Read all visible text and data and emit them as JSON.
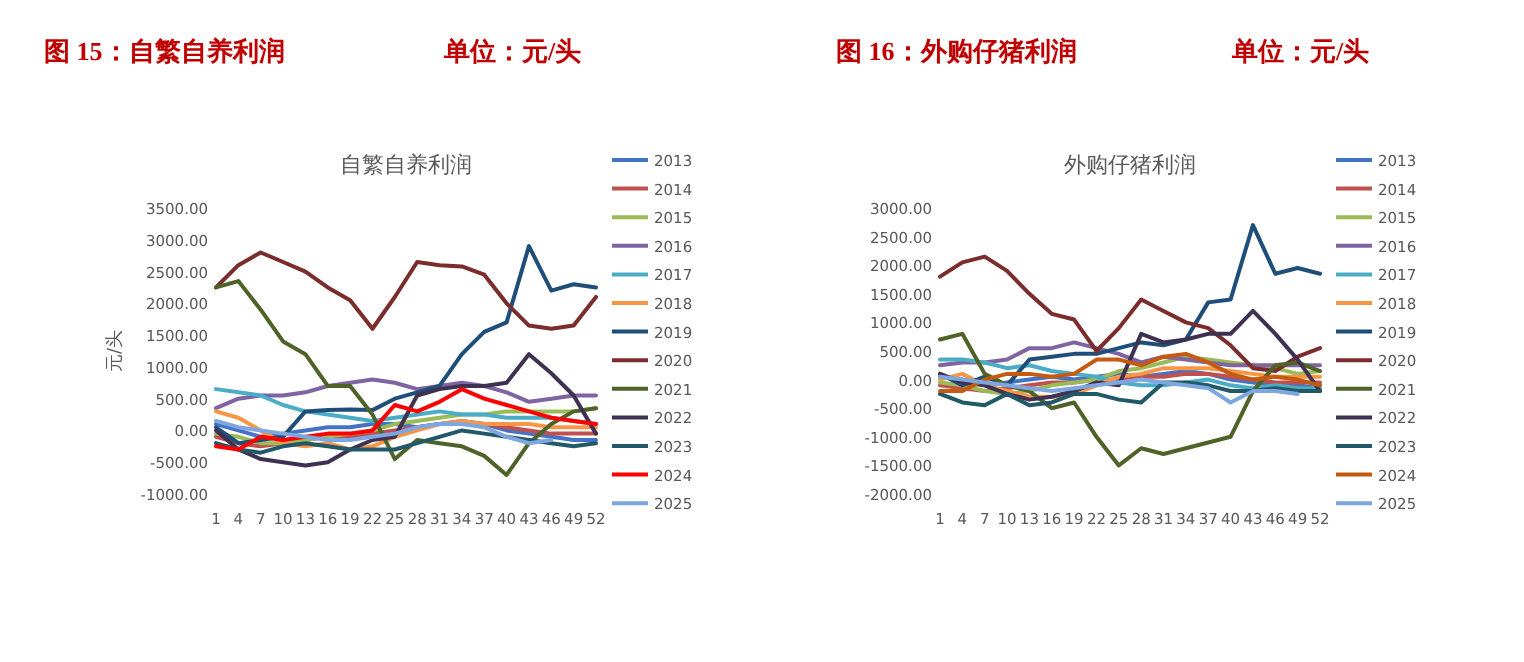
{
  "chart_data": [
    {
      "type": "line",
      "title": "自繁自养利润",
      "ylabel": "元/头",
      "annotations": [
        "图 15：自繁自养利润",
        "单位：元/头"
      ],
      "x": [
        1,
        4,
        7,
        10,
        13,
        16,
        19,
        22,
        25,
        28,
        31,
        34,
        37,
        40,
        43,
        46,
        49,
        52
      ],
      "xlim": [
        1,
        52
      ],
      "xticks": [
        1,
        4,
        7,
        10,
        13,
        16,
        19,
        22,
        25,
        28,
        31,
        34,
        37,
        40,
        43,
        46,
        49,
        52
      ],
      "ylim": [
        -1000,
        3500
      ],
      "yticks": [
        {
          "value": -1000,
          "label": "-1000.00"
        },
        {
          "value": -500,
          "label": "-500.00"
        },
        {
          "value": 0,
          "label": "0.00"
        },
        {
          "value": 500,
          "label": "500.00"
        },
        {
          "value": 1000,
          "label": "1000.00"
        },
        {
          "value": 1500,
          "label": "1500.00"
        },
        {
          "value": 2000,
          "label": "2000.00"
        },
        {
          "value": 2500,
          "label": "2500.00"
        },
        {
          "value": 3000,
          "label": "3000.00"
        },
        {
          "value": 3500,
          "label": "3500.00"
        }
      ],
      "legend": "right",
      "series": [
        {
          "name": "2013",
          "color": "#4472c4",
          "values": [
            100,
            0,
            -100,
            -50,
            0,
            50,
            50,
            100,
            100,
            50,
            100,
            150,
            100,
            0,
            -50,
            -100,
            -150,
            -150
          ]
        },
        {
          "name": "2014",
          "color": "#c0504d",
          "values": [
            -100,
            -200,
            -250,
            -200,
            -150,
            -100,
            -100,
            -50,
            0,
            50,
            100,
            100,
            100,
            50,
            0,
            -50,
            -50,
            -50
          ]
        },
        {
          "name": "2015",
          "color": "#9bbb59",
          "values": [
            -50,
            -100,
            -200,
            -200,
            -150,
            -100,
            -50,
            0,
            100,
            150,
            200,
            250,
            250,
            300,
            300,
            300,
            300,
            350
          ]
        },
        {
          "name": "2016",
          "color": "#8064a2",
          "values": [
            350,
            500,
            550,
            550,
            600,
            700,
            750,
            800,
            750,
            650,
            700,
            750,
            700,
            600,
            450,
            500,
            550,
            550
          ]
        },
        {
          "name": "2017",
          "color": "#4bacc6",
          "values": [
            650,
            600,
            550,
            400,
            300,
            250,
            200,
            150,
            200,
            250,
            300,
            250,
            250,
            200,
            200,
            200,
            150,
            100
          ]
        },
        {
          "name": "2018",
          "color": "#f79646",
          "values": [
            300,
            200,
            0,
            -200,
            -250,
            -200,
            -300,
            -250,
            -100,
            0,
            100,
            150,
            100,
            100,
            100,
            50,
            50,
            50
          ]
        },
        {
          "name": "2019",
          "color": "#1f4e79",
          "values": [
            50,
            -200,
            -150,
            -100,
            300,
            320,
            330,
            320,
            500,
            600,
            700,
            1200,
            1550,
            1700,
            2900,
            2200,
            2300,
            2250
          ]
        },
        {
          "name": "2020",
          "color": "#7b2c2c",
          "values": [
            2250,
            2600,
            2800,
            2650,
            2500,
            2250,
            2050,
            1600,
            2100,
            2650,
            2600,
            2580,
            2450,
            2000,
            1650,
            1600,
            1650,
            2100
          ]
        },
        {
          "name": "2021",
          "color": "#4f6228",
          "values": [
            2250,
            2350,
            1900,
            1400,
            1200,
            700,
            700,
            250,
            -450,
            -150,
            -200,
            -250,
            -400,
            -700,
            -200,
            100,
            300,
            350
          ]
        },
        {
          "name": "2022",
          "color": "#3f3151",
          "values": [
            0,
            -300,
            -450,
            -500,
            -550,
            -500,
            -300,
            -150,
            -100,
            550,
            650,
            700,
            700,
            750,
            1200,
            900,
            550,
            -50
          ]
        },
        {
          "name": "2023",
          "color": "#215968",
          "values": [
            -200,
            -300,
            -350,
            -250,
            -200,
            -250,
            -300,
            -300,
            -300,
            -200,
            -100,
            0,
            -50,
            -100,
            -150,
            -200,
            -250,
            -200
          ]
        },
        {
          "name": "2024",
          "color": "#ff0000",
          "values": [
            -250,
            -300,
            -100,
            -150,
            -100,
            -50,
            -50,
            0,
            400,
            300,
            450,
            650,
            500,
            400,
            300,
            200,
            150,
            100
          ]
        },
        {
          "name": "2025",
          "color": "#7ea6e0",
          "values": [
            150,
            50,
            0,
            -50,
            -100,
            -150,
            -150,
            -100,
            -50,
            50,
            100,
            100,
            50,
            -100,
            -200,
            -150,
            null,
            null
          ]
        }
      ]
    },
    {
      "type": "line",
      "title": "外购仔猪利润",
      "annotations": [
        "图 16：外购仔猪利润",
        "单位：元/头"
      ],
      "x": [
        1,
        4,
        7,
        10,
        13,
        16,
        19,
        22,
        25,
        28,
        31,
        34,
        37,
        40,
        43,
        46,
        49,
        52
      ],
      "xlim": [
        1,
        52
      ],
      "xticks": [
        1,
        4,
        7,
        10,
        13,
        16,
        19,
        22,
        25,
        28,
        31,
        34,
        37,
        40,
        43,
        46,
        49,
        52
      ],
      "ylim": [
        -2000,
        3000
      ],
      "yticks": [
        {
          "value": -2000,
          "label": "-2000.00"
        },
        {
          "value": -1500,
          "label": "-1500.00"
        },
        {
          "value": -1000,
          "label": "-1000.00"
        },
        {
          "value": -500,
          "label": "-500.00"
        },
        {
          "value": 0,
          "label": "0.00"
        },
        {
          "value": 500,
          "label": "500.00"
        },
        {
          "value": 1000,
          "label": "1000.00"
        },
        {
          "value": 1500,
          "label": "1500.00"
        },
        {
          "value": 2000,
          "label": "2000.00"
        },
        {
          "value": 2500,
          "label": "2500.00"
        },
        {
          "value": 3000,
          "label": "3000.00"
        }
      ],
      "legend": "right",
      "series": [
        {
          "name": "2013",
          "color": "#4472c4",
          "values": [
            50,
            0,
            -100,
            -50,
            0,
            50,
            0,
            50,
            100,
            50,
            100,
            150,
            100,
            0,
            -50,
            -100,
            -100,
            -150
          ]
        },
        {
          "name": "2014",
          "color": "#c0504d",
          "values": [
            -100,
            -150,
            -200,
            -150,
            -100,
            -50,
            -50,
            0,
            0,
            50,
            50,
            100,
            100,
            50,
            0,
            -50,
            -50,
            -50
          ]
        },
        {
          "name": "2015",
          "color": "#9bbb59",
          "values": [
            -50,
            -100,
            -200,
            -250,
            -200,
            -100,
            -50,
            0,
            150,
            200,
            300,
            400,
            350,
            300,
            250,
            200,
            100,
            150
          ]
        },
        {
          "name": "2016",
          "color": "#8064a2",
          "values": [
            250,
            300,
            300,
            350,
            550,
            550,
            650,
            550,
            450,
            300,
            400,
            350,
            300,
            250,
            250,
            250,
            250,
            250
          ]
        },
        {
          "name": "2017",
          "color": "#4bacc6",
          "values": [
            350,
            350,
            300,
            200,
            250,
            150,
            100,
            50,
            -50,
            -100,
            -100,
            -50,
            0,
            -100,
            -150,
            -100,
            -150,
            -150
          ]
        },
        {
          "name": "2018",
          "color": "#f79646",
          "values": [
            0,
            100,
            -100,
            -200,
            -300,
            -300,
            -250,
            -100,
            50,
            100,
            200,
            200,
            200,
            150,
            100,
            50,
            50,
            50
          ]
        },
        {
          "name": "2019",
          "color": "#1f4e79",
          "values": [
            100,
            -100,
            50,
            -100,
            350,
            400,
            450,
            450,
            550,
            650,
            600,
            700,
            1350,
            1400,
            2700,
            1850,
            1950,
            1850
          ]
        },
        {
          "name": "2020",
          "color": "#7b2c2c",
          "values": [
            1800,
            2050,
            2150,
            1900,
            1500,
            1150,
            1050,
            500,
            900,
            1400,
            1200,
            1000,
            900,
            600,
            200,
            150,
            400,
            550
          ]
        },
        {
          "name": "2021",
          "color": "#4f6228",
          "values": [
            700,
            800,
            100,
            -100,
            -200,
            -500,
            -400,
            -1000,
            -1500,
            -1200,
            -1300,
            -1200,
            -1100,
            -1000,
            -200,
            250,
            300,
            150
          ]
        },
        {
          "name": "2022",
          "color": "#3f3151",
          "values": [
            100,
            -50,
            -100,
            -250,
            -350,
            -300,
            -200,
            -50,
            -100,
            800,
            650,
            700,
            800,
            800,
            1200,
            800,
            350,
            -200
          ]
        },
        {
          "name": "2023",
          "color": "#215968",
          "values": [
            -250,
            -400,
            -450,
            -250,
            -450,
            -400,
            -250,
            -250,
            -350,
            -400,
            -50,
            -50,
            -100,
            -200,
            -200,
            -150,
            -200,
            -200
          ]
        },
        {
          "name": "2024",
          "color": "#c55a11",
          "values": [
            -200,
            -200,
            0,
            100,
            100,
            50,
            100,
            350,
            350,
            250,
            400,
            450,
            300,
            100,
            0,
            50,
            0,
            -100
          ]
        },
        {
          "name": "2025",
          "color": "#7ea6e0",
          "values": [
            50,
            0,
            -50,
            -100,
            -150,
            -200,
            -150,
            -100,
            -50,
            0,
            -50,
            -100,
            -150,
            -400,
            -200,
            -200,
            -250,
            null
          ]
        }
      ]
    }
  ]
}
